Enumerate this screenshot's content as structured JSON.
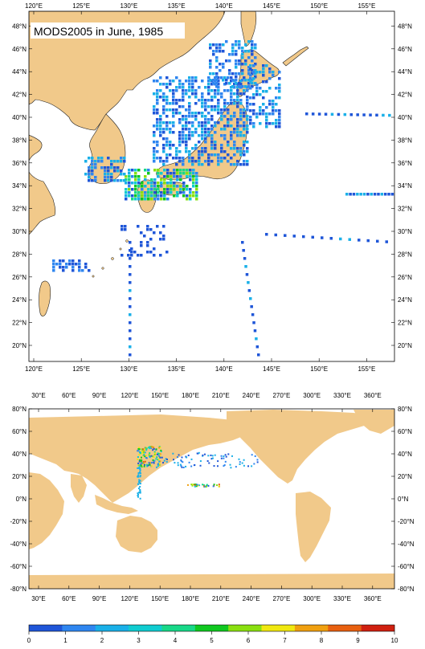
{
  "top_map": {
    "title": "MODS2005 in June, 1985",
    "lon_labels": [
      "120°E",
      "125°E",
      "130°E",
      "135°E",
      "140°E",
      "145°E",
      "150°E",
      "155°E"
    ],
    "lat_labels": [
      "20°N",
      "22°N",
      "24°N",
      "26°N",
      "28°N",
      "30°N",
      "32°N",
      "34°N",
      "36°N",
      "38°N",
      "40°N",
      "42°N",
      "44°N",
      "46°N",
      "48°N"
    ]
  },
  "bottom_map": {
    "lon_labels": [
      "30°E",
      "60°E",
      "90°E",
      "120°E",
      "150°E",
      "180°E",
      "210°E",
      "240°E",
      "270°E",
      "300°E",
      "330°E",
      "360°E"
    ],
    "lat_labels": [
      "-80°N",
      "-60°N",
      "-40°N",
      "-20°N",
      "0°N",
      "20°N",
      "40°N",
      "60°N",
      "80°N"
    ]
  },
  "colorbar": {
    "tick_labels": [
      "0",
      "1",
      "2",
      "3",
      "4",
      "5",
      "6",
      "7",
      "8",
      "9",
      "10"
    ],
    "colors": [
      "#1f56d8",
      "#2f86f0",
      "#1ab0e8",
      "#10ccd0",
      "#18d888",
      "#10c820",
      "#8ae010",
      "#f0e810",
      "#f0a010",
      "#e86010",
      "#d02010"
    ]
  },
  "colors": {
    "land": "#f1c98a",
    "ocean": "#ffffff"
  }
}
